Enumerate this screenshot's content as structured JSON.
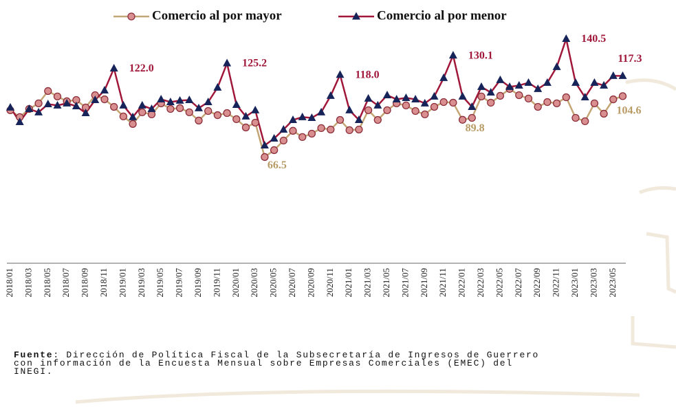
{
  "chart_data": {
    "type": "line",
    "categories": [
      "2018/01",
      null,
      "2018/03",
      null,
      "2018/05",
      null,
      "2018/07",
      null,
      "2018/09",
      null,
      "2018/11",
      null,
      "2019/01",
      null,
      "2019/03",
      null,
      "2019/05",
      null,
      "2019/07",
      null,
      "2019/09",
      null,
      "2019/11",
      null,
      "2020/01",
      null,
      "2020/03",
      null,
      "2020/05",
      null,
      "2020/07",
      null,
      "2020/09",
      null,
      "2020/11",
      null,
      "2021/01",
      null,
      "2021/03",
      null,
      "2021/05",
      null,
      "2021/07",
      null,
      "2021/09",
      null,
      "2021/11",
      null,
      "2022/01",
      null,
      "2022/03",
      null,
      "2022/05",
      null,
      "2022/07",
      null,
      "2022/09",
      null,
      "2022/11",
      null,
      "2023/01",
      null,
      "2023/03",
      null,
      "2023/05",
      null
    ],
    "ylim": [
      0,
      145
    ],
    "series": [
      {
        "name": "Comercio al por mayor",
        "color": "#c4a574",
        "marker_fill": "#d98f8f",
        "marker_stroke": "#8b2e3a",
        "marker": "circle",
        "label_color": "#b89a64",
        "values": [
          95.8,
          91.5,
          96.6,
          100.1,
          107.8,
          104.4,
          101.4,
          102.2,
          97.5,
          105.2,
          102.6,
          97.9,
          91.9,
          87.2,
          94.5,
          93.2,
          100.1,
          96.6,
          97.1,
          94.5,
          89.3,
          95.3,
          92.7,
          94.0,
          90.2,
          85.0,
          88.0,
          66.5,
          70.8,
          76.8,
          82.9,
          79.0,
          81.1,
          84.6,
          83.7,
          89.7,
          83.3,
          83.7,
          95.8,
          89.7,
          95.8,
          100.1,
          98.8,
          95.3,
          93.2,
          97.9,
          100.9,
          100.5,
          89.8,
          91.0,
          104.4,
          100.5,
          104.8,
          109.1,
          105.2,
          103.1,
          97.9,
          100.9,
          100.1,
          103.9,
          91.0,
          88.9,
          100.1,
          93.6,
          102.6,
          104.6
        ],
        "value_labels": [
          null,
          null,
          null,
          null,
          null,
          null,
          null,
          null,
          null,
          null,
          null,
          null,
          null,
          null,
          null,
          null,
          null,
          null,
          null,
          null,
          null,
          null,
          null,
          null,
          null,
          null,
          null,
          "66.5",
          null,
          null,
          null,
          null,
          null,
          null,
          null,
          null,
          null,
          null,
          null,
          null,
          null,
          null,
          null,
          null,
          null,
          null,
          null,
          null,
          "89.8",
          null,
          null,
          null,
          null,
          null,
          null,
          null,
          null,
          null,
          null,
          null,
          null,
          null,
          null,
          null,
          null,
          "104.6"
        ]
      },
      {
        "name": "Comercio al por menor",
        "color": "#a0173a",
        "marker_fill": "#16245a",
        "marker_stroke": "#16245a",
        "marker": "triangle",
        "label_color": "#a0173a",
        "values": [
          97.5,
          88.4,
          96.6,
          94.5,
          99.6,
          98.8,
          100.1,
          98.3,
          94.0,
          102.2,
          108.2,
          122.0,
          98.8,
          91.5,
          98.8,
          96.6,
          102.6,
          100.9,
          101.8,
          102.2,
          97.1,
          100.9,
          110.0,
          125.2,
          99.2,
          91.9,
          95.8,
          73.8,
          78.1,
          83.7,
          89.7,
          91.5,
          91.0,
          94.5,
          104.8,
          118.0,
          95.8,
          89.7,
          103.1,
          98.8,
          105.2,
          102.6,
          103.5,
          102.6,
          100.1,
          104.4,
          116.0,
          130.1,
          104.4,
          97.9,
          110.4,
          106.9,
          114.7,
          110.4,
          111.3,
          113.0,
          109.1,
          113.0,
          122.9,
          140.5,
          113.0,
          103.9,
          113.0,
          111.3,
          117.3,
          117.3
        ],
        "value_labels": [
          null,
          null,
          null,
          null,
          null,
          null,
          null,
          null,
          null,
          null,
          null,
          "122.0",
          null,
          null,
          null,
          null,
          null,
          null,
          null,
          null,
          null,
          null,
          null,
          "125.2",
          null,
          null,
          null,
          null,
          null,
          null,
          null,
          null,
          null,
          null,
          null,
          "118.0",
          null,
          null,
          null,
          null,
          null,
          null,
          null,
          null,
          null,
          null,
          null,
          "130.1",
          null,
          null,
          null,
          null,
          null,
          null,
          null,
          null,
          null,
          null,
          null,
          "140.5",
          null,
          null,
          null,
          null,
          null,
          "117.3"
        ]
      }
    ],
    "source_label": "Fuente",
    "source_text": ": Dirección de Política Fiscal de la Subsecretaría de Ingresos de Guerrero con información de la Encuesta Mensual sobre Empresas Comerciales (EMEC) del INEGI."
  }
}
